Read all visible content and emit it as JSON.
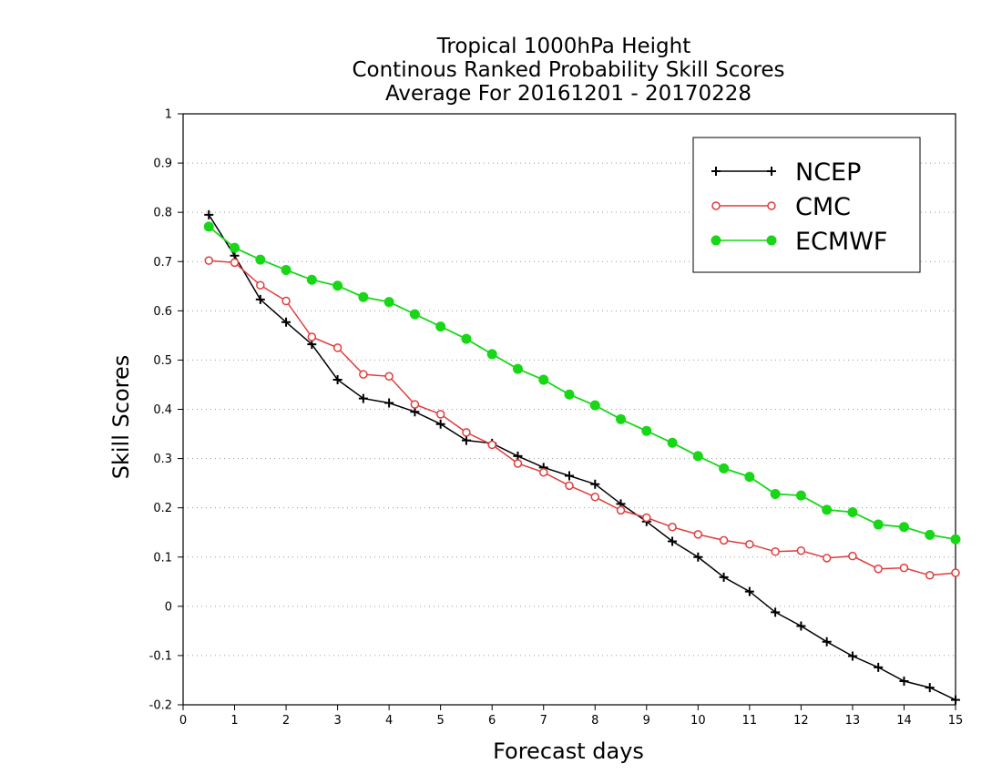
{
  "chart_data": {
    "type": "line",
    "title_lines": [
      "Tropical 1000hPa Height",
      "Continous Ranked Probability Skill Scores",
      "Average For 20161201 - 20170228"
    ],
    "xlabel": "Forecast days",
    "ylabel": "Skill Scores",
    "xlim": [
      0,
      15
    ],
    "ylim": [
      -0.2,
      1
    ],
    "x_ticks": [
      "0",
      "1",
      "2",
      "3",
      "4",
      "5",
      "6",
      "7",
      "8",
      "9",
      "10",
      "11",
      "12",
      "13",
      "14",
      "15"
    ],
    "y_ticks": [
      "-0.2",
      "-0.1",
      "0",
      "0.1",
      "0.2",
      "0.3",
      "0.4",
      "0.5",
      "0.6",
      "0.7",
      "0.8",
      "0.9",
      "1"
    ],
    "grid": "horizontal dotted",
    "legend_position": "top-right",
    "x": [
      0.5,
      1,
      1.5,
      2,
      2.5,
      3,
      3.5,
      4,
      4.5,
      5,
      5.5,
      6,
      6.5,
      7,
      7.5,
      8,
      8.5,
      9,
      9.5,
      10,
      10.5,
      11,
      11.5,
      12,
      12.5,
      13,
      13.5,
      14,
      14.5,
      15
    ],
    "series": [
      {
        "name": "NCEP",
        "color": "#000000",
        "marker": "plus",
        "values": [
          0.795,
          0.712,
          0.623,
          0.577,
          0.532,
          0.46,
          0.422,
          0.413,
          0.395,
          0.37,
          0.337,
          0.331,
          0.305,
          0.282,
          0.265,
          0.248,
          0.208,
          0.172,
          0.132,
          0.1,
          0.059,
          0.03,
          -0.012,
          -0.04,
          -0.072,
          -0.101,
          -0.124,
          -0.152,
          -0.165,
          -0.19
        ]
      },
      {
        "name": "CMC",
        "color": "#e03c3c",
        "marker": "open-circle",
        "values": [
          0.702,
          0.698,
          0.652,
          0.62,
          0.547,
          0.525,
          0.471,
          0.467,
          0.41,
          0.39,
          0.353,
          0.328,
          0.29,
          0.272,
          0.245,
          0.222,
          0.195,
          0.18,
          0.161,
          0.146,
          0.134,
          0.126,
          0.111,
          0.113,
          0.098,
          0.102,
          0.076,
          0.078,
          0.063,
          0.068
        ]
      },
      {
        "name": "ECMWF",
        "color": "#17d717",
        "marker": "filled-circle",
        "values": [
          0.771,
          0.728,
          0.704,
          0.683,
          0.663,
          0.651,
          0.628,
          0.618,
          0.593,
          0.568,
          0.543,
          0.512,
          0.482,
          0.46,
          0.43,
          0.408,
          0.38,
          0.356,
          0.332,
          0.305,
          0.28,
          0.263,
          0.228,
          0.225,
          0.196,
          0.191,
          0.166,
          0.161,
          0.145,
          0.136
        ]
      }
    ]
  }
}
